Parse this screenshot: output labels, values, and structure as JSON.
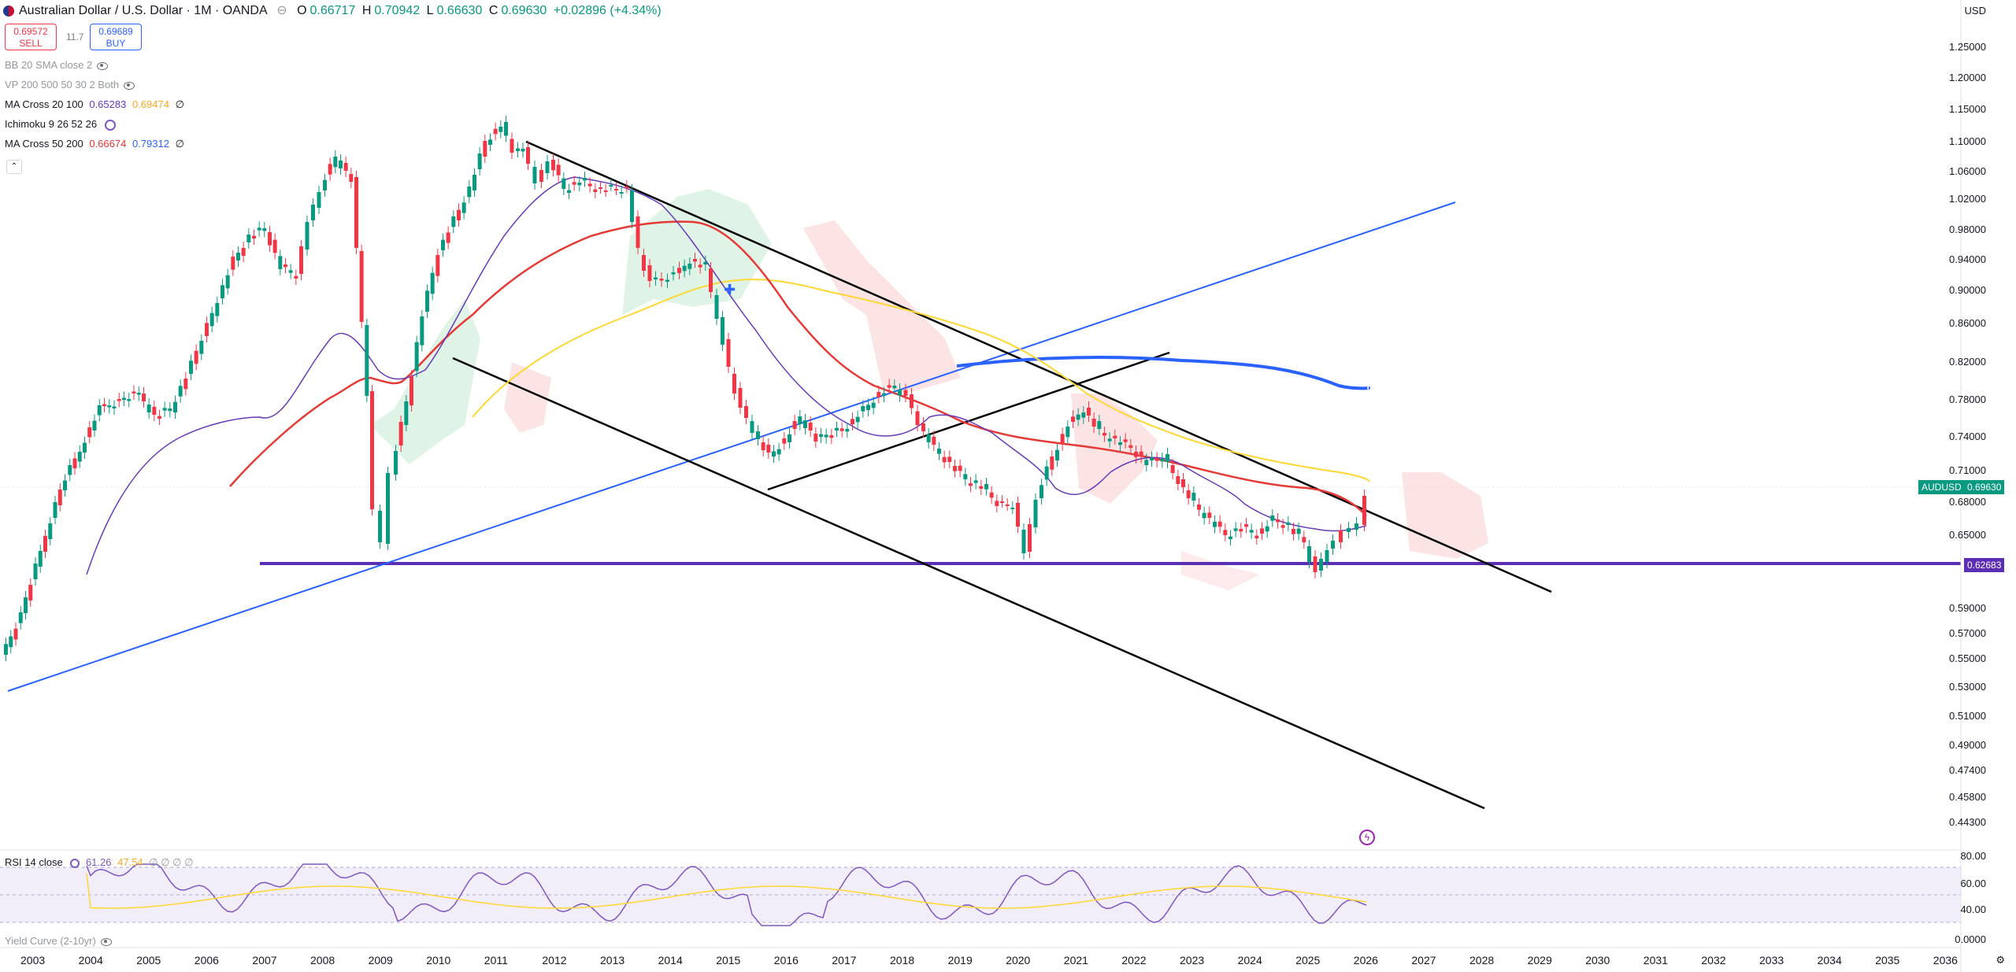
{
  "header": {
    "symbol_title": "Australian Dollar / U.S. Dollar · 1M · OANDA",
    "open_label": "O",
    "open": "0.66717",
    "high_label": "H",
    "high": "0.70942",
    "low_label": "L",
    "low": "0.66630",
    "close_label": "C",
    "close": "0.69630",
    "change": "+0.02896 (+4.34%)",
    "currency": "USD"
  },
  "trade": {
    "sell_price": "0.69572",
    "sell_label": "SELL",
    "spread": "11.7",
    "buy_price": "0.69689",
    "buy_label": "BUY"
  },
  "indicators": [
    {
      "name": "BB 20 SMA close 2",
      "hidden": true
    },
    {
      "name": "VP 200 500 50 30 2 Both",
      "hidden": true
    },
    {
      "name": "MA Cross 20 100",
      "v1": "0.65283",
      "v2": "0.69474",
      "tail": "∅"
    },
    {
      "name": "Ichimoku 9 26 52 26"
    },
    {
      "name": "MA Cross 50 200",
      "v1": "0.66674",
      "v2": "0.79312",
      "tail": "∅"
    }
  ],
  "rsi": {
    "name": "RSI 14 close",
    "v1": "61.26",
    "v2": "47.54",
    "tail": "∅ ∅ ∅ ∅"
  },
  "yield_curve": {
    "name": "Yield Curve (2-10yr)"
  },
  "price_axis": [
    "1.25000",
    "1.20000",
    "1.15000",
    "1.10000",
    "1.06000",
    "1.02000",
    "0.98000",
    "0.94000",
    "0.90000",
    "0.86000",
    "0.82000",
    "0.78000",
    "0.74000",
    "0.71000",
    "0.68000",
    "0.65000",
    "0.59000",
    "0.57000",
    "0.55000",
    "0.53000",
    "0.51000",
    "0.49000",
    "0.47400",
    "0.45800",
    "0.44300"
  ],
  "rsi_axis": [
    "80.00",
    "60.00",
    "40.00",
    "0.0000"
  ],
  "time_axis": [
    "2003",
    "2004",
    "2005",
    "2006",
    "2007",
    "2008",
    "2009",
    "2010",
    "2011",
    "2012",
    "2013",
    "2014",
    "2015",
    "2016",
    "2017",
    "2018",
    "2019",
    "2020",
    "2021",
    "2022",
    "2023",
    "2024",
    "2025",
    "2026",
    "2027",
    "2028",
    "2029",
    "2030",
    "2031",
    "2032",
    "2033",
    "2034",
    "2035",
    "2036"
  ],
  "tags": {
    "symbol": "AUDUSD",
    "last_price": "0.69630",
    "support_level": "0.62683"
  },
  "colors": {
    "bull": "#089981",
    "bear": "#f23645",
    "ma20": "#673ab7",
    "ma100": "#fdd835",
    "ma50": "#e53935",
    "ma200": "#2962ff",
    "support": "#5b2fb4",
    "rsi": "#7e57c2"
  },
  "icons": {
    "settings": "gear-icon",
    "collapse": "chevron-up-icon",
    "lightning": "lightning-icon"
  }
}
